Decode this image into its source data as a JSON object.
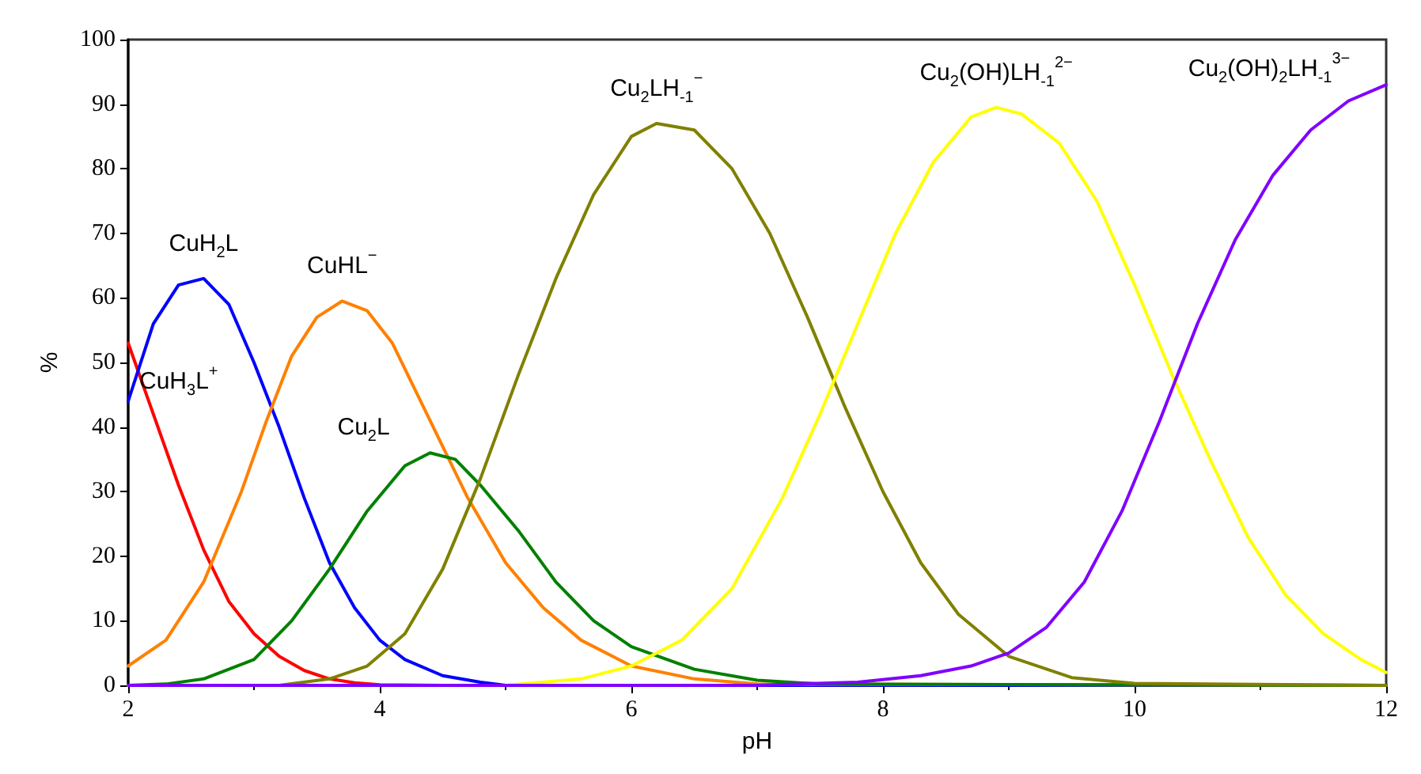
{
  "chart_data": {
    "type": "line",
    "xlabel": "pH",
    "ylabel": "%",
    "xlim": [
      2,
      12
    ],
    "xticks": [
      2,
      4,
      6,
      8,
      10,
      12
    ],
    "ylim": [
      0,
      100
    ],
    "yticks": [
      0,
      10,
      20,
      30,
      40,
      50,
      60,
      70,
      80,
      90,
      100
    ],
    "grid": false,
    "marker": "none",
    "line_style": "solid",
    "series": [
      {
        "name": "CuH$_{3}$L$^{+}$",
        "color": "#ff0000",
        "x": [
          2,
          2.2,
          2.4,
          2.6,
          2.8,
          3,
          3.2,
          3.4,
          3.6,
          3.8,
          4,
          4.5
        ],
        "values": [
          53,
          42,
          31,
          21,
          13,
          8,
          4.5,
          2.3,
          1,
          0.4,
          0.1,
          0
        ]
      },
      {
        "name": "CuH$_{2}$L",
        "color": "#0000ff",
        "x": [
          2,
          2.2,
          2.4,
          2.6,
          2.8,
          3,
          3.2,
          3.4,
          3.6,
          3.8,
          4,
          4.2,
          4.5,
          4.8,
          5,
          12
        ],
        "values": [
          44,
          56,
          62,
          63,
          59,
          50,
          40,
          29,
          19,
          12,
          7,
          4,
          1.5,
          0.5,
          0,
          0
        ]
      },
      {
        "name": "CuHL$^{−}$",
        "color": "#ff8000",
        "x": [
          2,
          2.3,
          2.6,
          2.9,
          3.1,
          3.3,
          3.5,
          3.7,
          3.9,
          4.1,
          4.3,
          4.5,
          4.7,
          5,
          5.3,
          5.6,
          6,
          6.5,
          7,
          12
        ],
        "values": [
          3,
          7,
          16,
          30,
          41,
          51,
          57,
          59.5,
          58,
          53,
          45,
          37,
          29,
          19,
          12,
          7,
          3,
          1,
          0.2,
          0
        ]
      },
      {
        "name": "Cu$_{2}$L",
        "color": "#008000",
        "x": [
          2,
          2.3,
          2.6,
          3,
          3.3,
          3.6,
          3.9,
          4.2,
          4.4,
          4.6,
          4.8,
          5.1,
          5.4,
          5.7,
          6,
          6.5,
          7,
          7.5,
          12
        ],
        "values": [
          0,
          0.2,
          1,
          4,
          10,
          18,
          27,
          34,
          36,
          35,
          31,
          24,
          16,
          10,
          6,
          2.5,
          0.8,
          0.2,
          0
        ]
      },
      {
        "name": "Cu$_{2}$LH$_{-1}$$^{−}$",
        "color": "#808000",
        "x": [
          2,
          3.2,
          3.6,
          3.9,
          4.2,
          4.5,
          4.8,
          5.1,
          5.4,
          5.7,
          6,
          6.2,
          6.5,
          6.8,
          7.1,
          7.4,
          7.7,
          8,
          8.3,
          8.6,
          9,
          9.5,
          10,
          12
        ],
        "values": [
          0,
          0,
          1,
          3,
          8,
          18,
          32,
          48,
          63,
          76,
          85,
          87,
          86,
          80,
          70,
          57,
          43,
          30,
          19,
          11,
          4.5,
          1.2,
          0.3,
          0
        ]
      },
      {
        "name": "Cu$_{2}$(OH)LH$_{-1}$$^{2−}$",
        "color": "#ffff00",
        "x": [
          2,
          5,
          5.6,
          6,
          6.4,
          6.8,
          7.2,
          7.5,
          7.8,
          8.1,
          8.4,
          8.7,
          8.9,
          9.1,
          9.4,
          9.7,
          10,
          10.3,
          10.6,
          10.9,
          11.2,
          11.5,
          11.8,
          12
        ],
        "values": [
          0,
          0,
          1,
          3,
          7,
          15,
          29,
          42,
          56,
          70,
          81,
          88,
          89.5,
          88.5,
          84,
          75,
          62,
          48,
          35,
          23,
          14,
          8,
          4,
          2
        ]
      },
      {
        "name": "Cu$_{2}$(OH)$_{2}$LH$_{-1}$$^{3−}$",
        "color": "#8000ff",
        "x": [
          2,
          7,
          7.8,
          8.3,
          8.7,
          9,
          9.3,
          9.6,
          9.9,
          10.2,
          10.5,
          10.8,
          11.1,
          11.4,
          11.7,
          12
        ],
        "values": [
          0,
          0,
          0.5,
          1.5,
          3,
          5,
          9,
          16,
          27,
          41,
          56,
          69,
          79,
          86,
          90.5,
          93
        ]
      }
    ]
  }
}
